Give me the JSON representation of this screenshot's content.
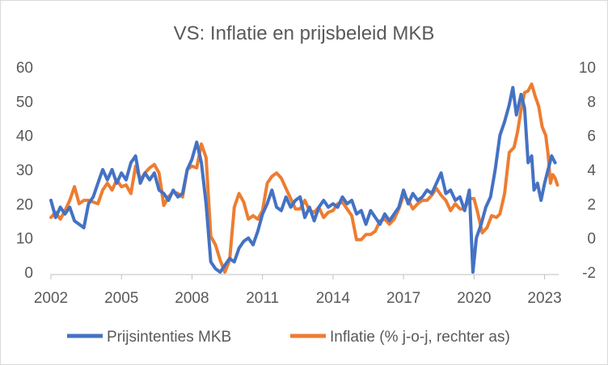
{
  "chart_data": {
    "type": "line",
    "title": "VS: Inflatie en prijsbeleid MKB",
    "x_ticks": [
      "2002",
      "2005",
      "2008",
      "2011",
      "2014",
      "2017",
      "2020",
      "2023"
    ],
    "x_range": [
      2002,
      2023.6
    ],
    "y_left": {
      "range": [
        0,
        60
      ],
      "ticks": [
        "0",
        "10",
        "20",
        "30",
        "40",
        "50",
        "60"
      ]
    },
    "y_right": {
      "range": [
        -2,
        10
      ],
      "ticks": [
        "-2",
        "0",
        "2",
        "4",
        "6",
        "8",
        "10"
      ]
    },
    "grid": false,
    "legend_position": "bottom",
    "series": [
      {
        "name": "Prijsintenties MKB",
        "axis": "left",
        "color": "#4472c4",
        "points": [
          [
            2002.0,
            21
          ],
          [
            2002.2,
            16
          ],
          [
            2002.4,
            19
          ],
          [
            2002.6,
            17
          ],
          [
            2002.8,
            19
          ],
          [
            2003.0,
            15
          ],
          [
            2003.2,
            14
          ],
          [
            2003.4,
            13
          ],
          [
            2003.6,
            20
          ],
          [
            2003.8,
            22
          ],
          [
            2004.0,
            26
          ],
          [
            2004.2,
            30
          ],
          [
            2004.4,
            27
          ],
          [
            2004.6,
            30
          ],
          [
            2004.8,
            26
          ],
          [
            2005.0,
            29
          ],
          [
            2005.2,
            27
          ],
          [
            2005.4,
            32
          ],
          [
            2005.6,
            34
          ],
          [
            2005.8,
            26
          ],
          [
            2006.0,
            29
          ],
          [
            2006.2,
            27
          ],
          [
            2006.4,
            29
          ],
          [
            2006.6,
            24
          ],
          [
            2006.8,
            23
          ],
          [
            2007.0,
            21
          ],
          [
            2007.2,
            24
          ],
          [
            2007.4,
            22
          ],
          [
            2007.6,
            23
          ],
          [
            2007.8,
            30
          ],
          [
            2008.0,
            33
          ],
          [
            2008.2,
            38
          ],
          [
            2008.4,
            32
          ],
          [
            2008.6,
            20
          ],
          [
            2008.8,
            3
          ],
          [
            2009.0,
            1
          ],
          [
            2009.2,
            0
          ],
          [
            2009.4,
            2
          ],
          [
            2009.6,
            4
          ],
          [
            2009.8,
            3
          ],
          [
            2010.0,
            7
          ],
          [
            2010.2,
            9
          ],
          [
            2010.4,
            10
          ],
          [
            2010.6,
            8
          ],
          [
            2010.8,
            12
          ],
          [
            2011.0,
            17
          ],
          [
            2011.2,
            20
          ],
          [
            2011.4,
            24
          ],
          [
            2011.6,
            19
          ],
          [
            2011.8,
            18
          ],
          [
            2012.0,
            22
          ],
          [
            2012.2,
            19
          ],
          [
            2012.4,
            21
          ],
          [
            2012.6,
            22
          ],
          [
            2012.8,
            16
          ],
          [
            2013.0,
            19
          ],
          [
            2013.2,
            15
          ],
          [
            2013.4,
            19
          ],
          [
            2013.6,
            21
          ],
          [
            2013.8,
            19
          ],
          [
            2014.0,
            20
          ],
          [
            2014.2,
            19
          ],
          [
            2014.4,
            22
          ],
          [
            2014.6,
            20
          ],
          [
            2014.8,
            21
          ],
          [
            2015.0,
            17
          ],
          [
            2015.2,
            18
          ],
          [
            2015.4,
            14
          ],
          [
            2015.6,
            18
          ],
          [
            2015.8,
            16
          ],
          [
            2016.0,
            14
          ],
          [
            2016.2,
            17
          ],
          [
            2016.4,
            15
          ],
          [
            2016.6,
            17
          ],
          [
            2016.8,
            19
          ],
          [
            2017.0,
            24
          ],
          [
            2017.2,
            20
          ],
          [
            2017.4,
            23
          ],
          [
            2017.6,
            21
          ],
          [
            2017.8,
            22
          ],
          [
            2018.0,
            24
          ],
          [
            2018.2,
            23
          ],
          [
            2018.4,
            26
          ],
          [
            2018.6,
            29
          ],
          [
            2018.8,
            23
          ],
          [
            2019.0,
            24
          ],
          [
            2019.2,
            21
          ],
          [
            2019.4,
            22
          ],
          [
            2019.6,
            18
          ],
          [
            2019.8,
            24
          ],
          [
            2019.95,
            0
          ],
          [
            2020.1,
            10
          ],
          [
            2020.3,
            14
          ],
          [
            2020.5,
            19
          ],
          [
            2020.7,
            22
          ],
          [
            2020.9,
            30
          ],
          [
            2021.1,
            40
          ],
          [
            2021.3,
            44
          ],
          [
            2021.5,
            49
          ],
          [
            2021.65,
            54
          ],
          [
            2021.8,
            46
          ],
          [
            2022.0,
            52
          ],
          [
            2022.15,
            48
          ],
          [
            2022.3,
            32
          ],
          [
            2022.45,
            34
          ],
          [
            2022.55,
            24
          ],
          [
            2022.7,
            26
          ],
          [
            2022.85,
            21
          ],
          [
            2023.0,
            26
          ],
          [
            2023.15,
            30
          ],
          [
            2023.3,
            34
          ],
          [
            2023.45,
            32
          ]
        ]
      },
      {
        "name": "Inflatie (% j-o-j, rechter as)",
        "axis": "right",
        "color": "#ed7d31",
        "points": [
          [
            2002.0,
            1.2
          ],
          [
            2002.2,
            1.5
          ],
          [
            2002.4,
            1.1
          ],
          [
            2002.6,
            1.6
          ],
          [
            2002.8,
            2.2
          ],
          [
            2003.0,
            3.0
          ],
          [
            2003.2,
            2.0
          ],
          [
            2003.4,
            2.2
          ],
          [
            2003.6,
            2.2
          ],
          [
            2003.8,
            2.1
          ],
          [
            2004.0,
            2.0
          ],
          [
            2004.2,
            2.8
          ],
          [
            2004.4,
            3.2
          ],
          [
            2004.6,
            2.8
          ],
          [
            2004.8,
            3.4
          ],
          [
            2005.0,
            3.0
          ],
          [
            2005.2,
            3.1
          ],
          [
            2005.4,
            2.6
          ],
          [
            2005.6,
            4.2
          ],
          [
            2005.8,
            3.4
          ],
          [
            2006.0,
            3.8
          ],
          [
            2006.2,
            4.1
          ],
          [
            2006.4,
            4.3
          ],
          [
            2006.6,
            3.8
          ],
          [
            2006.8,
            1.9
          ],
          [
            2007.0,
            2.4
          ],
          [
            2007.2,
            2.7
          ],
          [
            2007.4,
            2.6
          ],
          [
            2007.6,
            2.4
          ],
          [
            2007.8,
            4.0
          ],
          [
            2008.0,
            4.2
          ],
          [
            2008.2,
            4.1
          ],
          [
            2008.4,
            5.5
          ],
          [
            2008.6,
            4.7
          ],
          [
            2008.8,
            0.1
          ],
          [
            2009.0,
            -0.4
          ],
          [
            2009.2,
            -1.3
          ],
          [
            2009.4,
            -2.0
          ],
          [
            2009.6,
            -1.3
          ],
          [
            2009.8,
            1.8
          ],
          [
            2010.0,
            2.6
          ],
          [
            2010.2,
            2.1
          ],
          [
            2010.4,
            1.1
          ],
          [
            2010.6,
            1.3
          ],
          [
            2010.8,
            1.1
          ],
          [
            2011.0,
            1.6
          ],
          [
            2011.2,
            3.2
          ],
          [
            2011.4,
            3.6
          ],
          [
            2011.6,
            3.8
          ],
          [
            2011.8,
            3.5
          ],
          [
            2012.0,
            2.9
          ],
          [
            2012.2,
            2.3
          ],
          [
            2012.4,
            1.7
          ],
          [
            2012.6,
            1.7
          ],
          [
            2012.8,
            2.2
          ],
          [
            2013.0,
            1.6
          ],
          [
            2013.2,
            1.5
          ],
          [
            2013.4,
            1.8
          ],
          [
            2013.6,
            1.2
          ],
          [
            2013.8,
            1.5
          ],
          [
            2014.0,
            1.6
          ],
          [
            2014.2,
            2.0
          ],
          [
            2014.4,
            2.1
          ],
          [
            2014.6,
            1.7
          ],
          [
            2014.8,
            1.3
          ],
          [
            2015.0,
            -0.1
          ],
          [
            2015.2,
            -0.1
          ],
          [
            2015.4,
            0.2
          ],
          [
            2015.6,
            0.2
          ],
          [
            2015.8,
            0.4
          ],
          [
            2016.0,
            1.0
          ],
          [
            2016.2,
            1.1
          ],
          [
            2016.4,
            0.8
          ],
          [
            2016.6,
            1.1
          ],
          [
            2016.8,
            1.7
          ],
          [
            2017.0,
            2.5
          ],
          [
            2017.2,
            2.2
          ],
          [
            2017.4,
            1.7
          ],
          [
            2017.6,
            2.0
          ],
          [
            2017.8,
            2.2
          ],
          [
            2018.0,
            2.2
          ],
          [
            2018.2,
            2.5
          ],
          [
            2018.4,
            2.9
          ],
          [
            2018.6,
            2.5
          ],
          [
            2018.8,
            2.2
          ],
          [
            2019.0,
            1.6
          ],
          [
            2019.2,
            2.0
          ],
          [
            2019.4,
            1.7
          ],
          [
            2019.6,
            1.7
          ],
          [
            2019.8,
            2.3
          ],
          [
            2020.0,
            2.3
          ],
          [
            2020.15,
            1.5
          ],
          [
            2020.35,
            0.3
          ],
          [
            2020.55,
            0.6
          ],
          [
            2020.75,
            1.3
          ],
          [
            2020.95,
            1.2
          ],
          [
            2021.1,
            1.4
          ],
          [
            2021.3,
            2.6
          ],
          [
            2021.5,
            5.0
          ],
          [
            2021.7,
            5.3
          ],
          [
            2021.85,
            6.2
          ],
          [
            2022.0,
            7.5
          ],
          [
            2022.15,
            8.5
          ],
          [
            2022.3,
            8.6
          ],
          [
            2022.45,
            9.0
          ],
          [
            2022.6,
            8.3
          ],
          [
            2022.75,
            7.7
          ],
          [
            2022.9,
            6.5
          ],
          [
            2023.05,
            6.0
          ],
          [
            2023.15,
            4.9
          ],
          [
            2023.25,
            3.2
          ],
          [
            2023.35,
            3.7
          ],
          [
            2023.45,
            3.5
          ],
          [
            2023.55,
            3.1
          ]
        ]
      }
    ]
  }
}
